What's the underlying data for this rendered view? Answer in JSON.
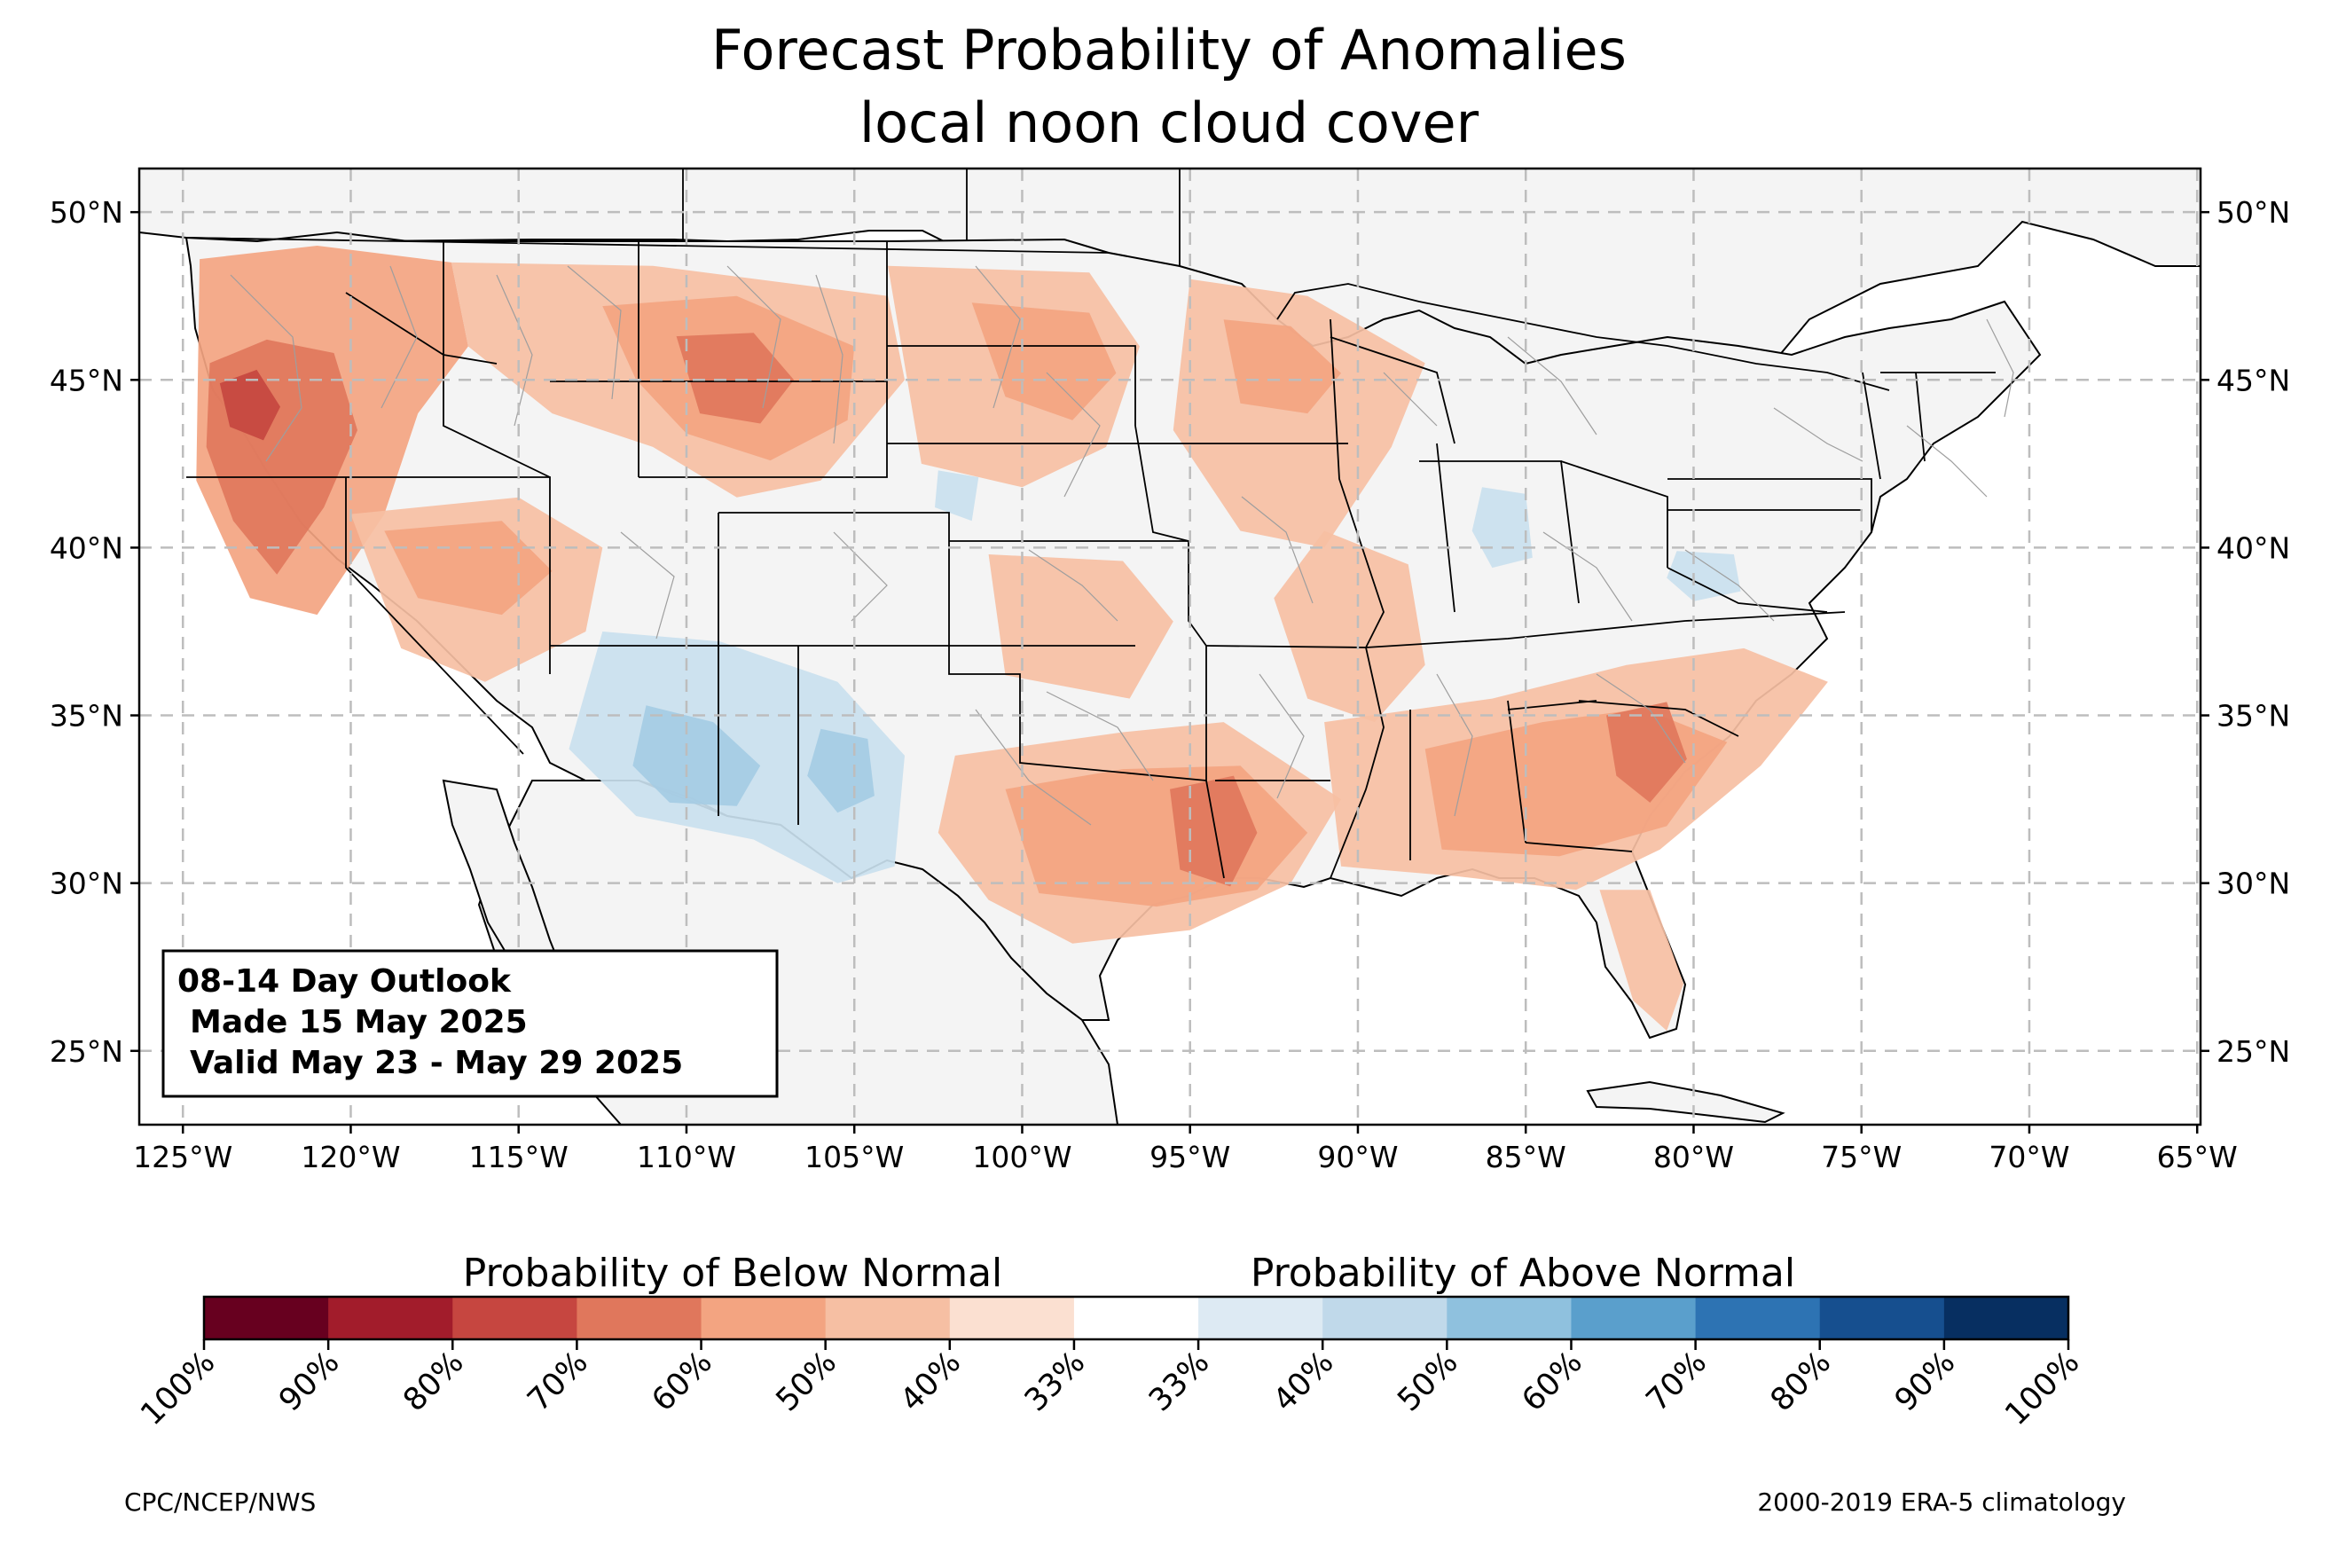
{
  "title": {
    "line1": "Forecast Probability of Anomalies",
    "line2": "local noon cloud cover"
  },
  "map": {
    "lon_range": [
      -126.3,
      -64.9
    ],
    "lat_range": [
      22.8,
      51.3
    ],
    "lon_ticks": [
      {
        "lon": -125,
        "label": "125°W"
      },
      {
        "lon": -120,
        "label": "120°W"
      },
      {
        "lon": -115,
        "label": "115°W"
      },
      {
        "lon": -110,
        "label": "110°W"
      },
      {
        "lon": -105,
        "label": "105°W"
      },
      {
        "lon": -100,
        "label": "100°W"
      },
      {
        "lon": -95,
        "label": "95°W"
      },
      {
        "lon": -90,
        "label": "90°W"
      },
      {
        "lon": -85,
        "label": "85°W"
      },
      {
        "lon": -80,
        "label": "80°W"
      },
      {
        "lon": -75,
        "label": "75°W"
      },
      {
        "lon": -70,
        "label": "70°W"
      },
      {
        "lon": -65,
        "label": "65°W"
      }
    ],
    "lat_ticks": [
      {
        "lat": 50,
        "label": "50°N"
      },
      {
        "lat": 45,
        "label": "45°N"
      },
      {
        "lat": 40,
        "label": "40°N"
      },
      {
        "lat": 35,
        "label": "35°N"
      },
      {
        "lat": 30,
        "label": "30°N"
      },
      {
        "lat": 25,
        "label": "25°N"
      }
    ],
    "gridlines": true,
    "land_color": "#f4f4f4",
    "anomaly_regions": [
      {
        "name": "pacific-northwest-below",
        "color": "#f3a481",
        "points": [
          [
            -124.5,
            48.6
          ],
          [
            -121,
            49
          ],
          [
            -117,
            48.5
          ],
          [
            -116.5,
            46
          ],
          [
            -118,
            44
          ],
          [
            -119,
            41
          ],
          [
            -121,
            38
          ],
          [
            -123,
            38.5
          ],
          [
            -124.6,
            42
          ]
        ]
      },
      {
        "name": "pacific-northwest-core",
        "color": "#e0775c",
        "points": [
          [
            -124.2,
            45.5
          ],
          [
            -122.5,
            46.2
          ],
          [
            -120.5,
            45.8
          ],
          [
            -119.8,
            43.5
          ],
          [
            -120.8,
            41.2
          ],
          [
            -122.2,
            39.2
          ],
          [
            -123.5,
            40.8
          ],
          [
            -124.3,
            43
          ]
        ]
      },
      {
        "name": "oregon-peak",
        "color": "#c64640",
        "points": [
          [
            -123.9,
            44.9
          ],
          [
            -122.8,
            45.3
          ],
          [
            -122.1,
            44.2
          ],
          [
            -122.6,
            43.2
          ],
          [
            -123.6,
            43.6
          ]
        ]
      },
      {
        "name": "great-basin-below",
        "color": "#f6bfa3",
        "points": [
          [
            -120,
            41
          ],
          [
            -115,
            41.5
          ],
          [
            -112.5,
            40
          ],
          [
            -113,
            37.5
          ],
          [
            -116,
            36
          ],
          [
            -118.5,
            37
          ]
        ]
      },
      {
        "name": "great-basin-mid",
        "color": "#f3a481",
        "points": [
          [
            -119,
            40.5
          ],
          [
            -115.5,
            40.8
          ],
          [
            -114,
            39.3
          ],
          [
            -115.5,
            38
          ],
          [
            -118,
            38.5
          ]
        ]
      },
      {
        "name": "northern-rockies-below",
        "color": "#f6bfa3",
        "points": [
          [
            -117,
            48.5
          ],
          [
            -111,
            48.4
          ],
          [
            -104,
            47.5
          ],
          [
            -103.5,
            45
          ],
          [
            -106,
            42
          ],
          [
            -108.5,
            41.5
          ],
          [
            -111,
            43
          ],
          [
            -114,
            44
          ],
          [
            -116.5,
            46
          ]
        ]
      },
      {
        "name": "montana-wyoming-mid",
        "color": "#f3a481",
        "points": [
          [
            -112.5,
            47.2
          ],
          [
            -108.5,
            47.5
          ],
          [
            -105,
            46
          ],
          [
            -105.2,
            43.8
          ],
          [
            -107.5,
            42.6
          ],
          [
            -110,
            43.4
          ],
          [
            -111.5,
            45
          ]
        ]
      },
      {
        "name": "wyoming-core",
        "color": "#e0775c",
        "points": [
          [
            -110.3,
            46.3
          ],
          [
            -108,
            46.4
          ],
          [
            -106.8,
            45
          ],
          [
            -107.8,
            43.7
          ],
          [
            -109.6,
            44
          ]
        ]
      },
      {
        "name": "northern-plains-below",
        "color": "#f6bfa3",
        "points": [
          [
            -104,
            48.4
          ],
          [
            -98,
            48.2
          ],
          [
            -96.5,
            46
          ],
          [
            -97.5,
            43
          ],
          [
            -100,
            41.8
          ],
          [
            -103,
            42.5
          ]
        ]
      },
      {
        "name": "dakotas-mid",
        "color": "#f3a481",
        "points": [
          [
            -101.5,
            47.3
          ],
          [
            -98,
            47
          ],
          [
            -97.2,
            45.2
          ],
          [
            -98.5,
            43.8
          ],
          [
            -100.5,
            44.5
          ]
        ]
      },
      {
        "name": "upper-midwest-below",
        "color": "#f6bfa3",
        "points": [
          [
            -95,
            48
          ],
          [
            -91.5,
            47.5
          ],
          [
            -88,
            45.5
          ],
          [
            -89,
            43
          ],
          [
            -91,
            40
          ],
          [
            -93.5,
            40.5
          ],
          [
            -95.5,
            43.5
          ]
        ]
      },
      {
        "name": "minnesota-mid",
        "color": "#f3a481",
        "points": [
          [
            -94,
            46.8
          ],
          [
            -92,
            46.6
          ],
          [
            -90.5,
            45.2
          ],
          [
            -91.5,
            44
          ],
          [
            -93.5,
            44.3
          ]
        ]
      },
      {
        "name": "central-plains-below",
        "color": "#f6bfa3",
        "points": [
          [
            -101,
            39.8
          ],
          [
            -97,
            39.6
          ],
          [
            -95.5,
            37.8
          ],
          [
            -96.8,
            35.5
          ],
          [
            -100.5,
            36.2
          ]
        ]
      },
      {
        "name": "mississippi-valley-below",
        "color": "#f6bfa3",
        "points": [
          [
            -91,
            40.5
          ],
          [
            -88.5,
            39.5
          ],
          [
            -88,
            36.5
          ],
          [
            -89.5,
            34.8
          ],
          [
            -91.5,
            35.5
          ],
          [
            -92.5,
            38.5
          ]
        ]
      },
      {
        "name": "southern-plains-below",
        "color": "#f6bfa3",
        "points": [
          [
            -102,
            33.8
          ],
          [
            -97,
            34.5
          ],
          [
            -94,
            34.8
          ],
          [
            -90.5,
            32.5
          ],
          [
            -92,
            30
          ],
          [
            -95,
            28.6
          ],
          [
            -98.5,
            28.2
          ],
          [
            -101,
            29.5
          ],
          [
            -102.5,
            31.5
          ]
        ]
      },
      {
        "name": "texas-louisiana-mid",
        "color": "#f3a481",
        "points": [
          [
            -100.5,
            32.8
          ],
          [
            -97,
            33.4
          ],
          [
            -93.5,
            33.5
          ],
          [
            -91.5,
            31.5
          ],
          [
            -93,
            29.8
          ],
          [
            -96,
            29.3
          ],
          [
            -99.5,
            29.7
          ]
        ]
      },
      {
        "name": "east-texas-core",
        "color": "#e0775c",
        "points": [
          [
            -95.6,
            32.8
          ],
          [
            -93.7,
            33.2
          ],
          [
            -93,
            31.5
          ],
          [
            -93.8,
            29.9
          ],
          [
            -95.3,
            30.4
          ]
        ]
      },
      {
        "name": "southeast-below",
        "color": "#f6bfa3",
        "points": [
          [
            -91,
            34.8
          ],
          [
            -86,
            35.5
          ],
          [
            -82,
            36.5
          ],
          [
            -78.5,
            37
          ],
          [
            -76,
            36
          ],
          [
            -78,
            33.5
          ],
          [
            -81,
            31
          ],
          [
            -83.5,
            29.8
          ],
          [
            -87,
            30.2
          ],
          [
            -90.5,
            30.5
          ]
        ]
      },
      {
        "name": "southeast-mid",
        "color": "#f3a481",
        "points": [
          [
            -88,
            34
          ],
          [
            -84.5,
            34.8
          ],
          [
            -81.5,
            35.2
          ],
          [
            -79,
            34.2
          ],
          [
            -80.8,
            31.7
          ],
          [
            -84,
            30.8
          ],
          [
            -87.5,
            31
          ]
        ]
      },
      {
        "name": "carolinas-core",
        "color": "#e0775c",
        "points": [
          [
            -82.6,
            35
          ],
          [
            -80.8,
            35.4
          ],
          [
            -80.2,
            33.7
          ],
          [
            -81.3,
            32.4
          ],
          [
            -82.3,
            33.2
          ]
        ]
      },
      {
        "name": "florida-below",
        "color": "#f6bfa3",
        "points": [
          [
            -82.8,
            29.8
          ],
          [
            -81.3,
            29.8
          ],
          [
            -80.3,
            27
          ],
          [
            -80.8,
            25.6
          ],
          [
            -81.8,
            26.5
          ]
        ]
      },
      {
        "name": "southwest-above",
        "color": "#c9dfee",
        "points": [
          [
            -112.5,
            37.5
          ],
          [
            -109,
            37.2
          ],
          [
            -105.5,
            36
          ],
          [
            -103.5,
            33.8
          ],
          [
            -103.8,
            30.5
          ],
          [
            -105.5,
            30
          ],
          [
            -108,
            31.3
          ],
          [
            -111.5,
            32
          ],
          [
            -113.5,
            34
          ]
        ]
      },
      {
        "name": "southwest-above-mid",
        "color": "#a5cce4",
        "points": [
          [
            -111.2,
            35.3
          ],
          [
            -109.2,
            34.8
          ],
          [
            -107.8,
            33.5
          ],
          [
            -108.5,
            32.3
          ],
          [
            -110.5,
            32.4
          ],
          [
            -111.6,
            33.5
          ]
        ]
      },
      {
        "name": "new-mexico-above-mid",
        "color": "#a5cce4",
        "points": [
          [
            -106,
            34.6
          ],
          [
            -104.6,
            34.3
          ],
          [
            -104.4,
            32.6
          ],
          [
            -105.5,
            32.1
          ],
          [
            -106.4,
            33.2
          ]
        ]
      },
      {
        "name": "ohio-valley-above",
        "color": "#c9dfee",
        "points": [
          [
            -86.3,
            41.8
          ],
          [
            -85,
            41.6
          ],
          [
            -84.8,
            39.7
          ],
          [
            -86,
            39.4
          ],
          [
            -86.6,
            40.5
          ]
        ]
      },
      {
        "name": "mid-atlantic-above",
        "color": "#c9dfee",
        "points": [
          [
            -80.5,
            39.9
          ],
          [
            -78.8,
            39.8
          ],
          [
            -78.6,
            38.7
          ],
          [
            -80,
            38.4
          ],
          [
            -80.8,
            39.1
          ]
        ]
      },
      {
        "name": "nebraska-above",
        "color": "#c9dfee",
        "points": [
          [
            -102.5,
            42.3
          ],
          [
            -101.3,
            42.1
          ],
          [
            -101.5,
            40.8
          ],
          [
            -102.6,
            41.2
          ]
        ]
      }
    ]
  },
  "info_box": {
    "line1": "08-14 Day Outlook",
    "line2": "Made 15 May 2025",
    "line3": "Valid May 23 - May 29 2025"
  },
  "colorbar": {
    "below_label": "Probability of Below Normal",
    "above_label": "Probability of Above Normal",
    "colors": [
      "#67001f",
      "#a21c2b",
      "#c64640",
      "#e0775c",
      "#f3a481",
      "#f6bfa3",
      "#fbe0d1",
      "#ffffff",
      "#ddeaf3",
      "#c0d9ea",
      "#8fc1de",
      "#5a9fcc",
      "#2d73b3",
      "#164f8f",
      "#072f61"
    ],
    "tick_labels": [
      "100%",
      "90%",
      "80%",
      "70%",
      "60%",
      "50%",
      "40%",
      "33%",
      "33%",
      "40%",
      "50%",
      "60%",
      "70%",
      "80%",
      "90%",
      "100%"
    ]
  },
  "footer": {
    "left": "CPC/NCEP/NWS",
    "right": "2000-2019 ERA-5 climatology"
  }
}
